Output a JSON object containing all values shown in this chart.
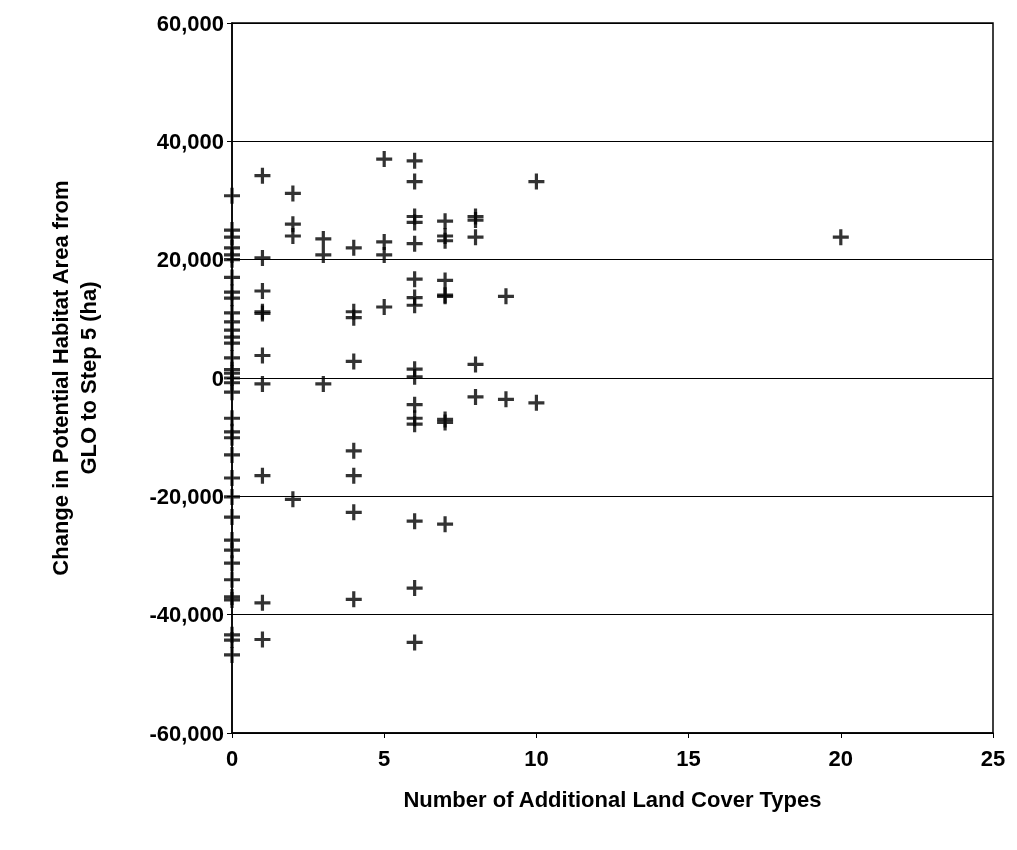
{
  "chart_data": {
    "type": "scatter",
    "xlabel": "Number of Additional Land Cover Types",
    "ylabel": "Change in Potential Habitat Area from\nGLO to Step 5 (ha)",
    "x": [
      0,
      0,
      0,
      0,
      0,
      0,
      0,
      0,
      0,
      0,
      0,
      0,
      0,
      0,
      0,
      0,
      0,
      0,
      0,
      0,
      0,
      0,
      0,
      0,
      0,
      0,
      0,
      0,
      0,
      0,
      0,
      0,
      0,
      0,
      0,
      0,
      1,
      1,
      1,
      1,
      1,
      1,
      1,
      1,
      1,
      1,
      2,
      2,
      2,
      2,
      3,
      3,
      3,
      4,
      4,
      4,
      4,
      4,
      4,
      4,
      4,
      5,
      5,
      5,
      5,
      6,
      6,
      6,
      6,
      6,
      6,
      6,
      6,
      6,
      6,
      6,
      6,
      6,
      6,
      6,
      6,
      7,
      7,
      7,
      7,
      7,
      7,
      7,
      7,
      7,
      8,
      8,
      8,
      8,
      8,
      9,
      9,
      10,
      10,
      20
    ],
    "values": [
      30800,
      25000,
      23800,
      22000,
      20800,
      20000,
      17000,
      14500,
      13500,
      11000,
      9500,
      8100,
      6900,
      5900,
      3400,
      1400,
      0,
      -800,
      -2400,
      -6800,
      -9100,
      -10100,
      -13000,
      -16900,
      -20100,
      -23500,
      -27400,
      -29100,
      -31300,
      -34100,
      -37500,
      -43400,
      -44300,
      -46800,
      800,
      -37000,
      34200,
      20300,
      14700,
      11200,
      10900,
      3800,
      -1000,
      -16500,
      -38000,
      -44200,
      31200,
      26000,
      24000,
      -20500,
      23500,
      20800,
      -1000,
      22000,
      11200,
      10200,
      2800,
      -12300,
      -16500,
      -22700,
      -37400,
      37000,
      23000,
      20800,
      12000,
      36700,
      33200,
      27300,
      26300,
      22700,
      16700,
      13600,
      12300,
      1500,
      200,
      -4500,
      -6800,
      -7800,
      -24200,
      -35500,
      -44700,
      26500,
      24000,
      23200,
      16500,
      14000,
      13800,
      -7000,
      -7500,
      -24700,
      27300,
      26700,
      23800,
      2300,
      -3200,
      13800,
      -3600,
      33200,
      -4200,
      23800
    ],
    "color": "#000000",
    "marker": "cross",
    "grid": "y",
    "xlim": [
      0,
      25
    ],
    "xticks": [
      0,
      5,
      10,
      15,
      20,
      25
    ],
    "ylim": [
      -60000,
      60000
    ],
    "yticks": [
      {
        "value": -60000,
        "label": "-60,000"
      },
      {
        "value": -40000,
        "label": "-40,000"
      },
      {
        "value": -20000,
        "label": "-20,000"
      },
      0,
      {
        "value": 20000,
        "label": "20,000"
      },
      {
        "value": 40000,
        "label": "40,000"
      },
      {
        "value": 60000,
        "label": "60,000"
      }
    ]
  }
}
